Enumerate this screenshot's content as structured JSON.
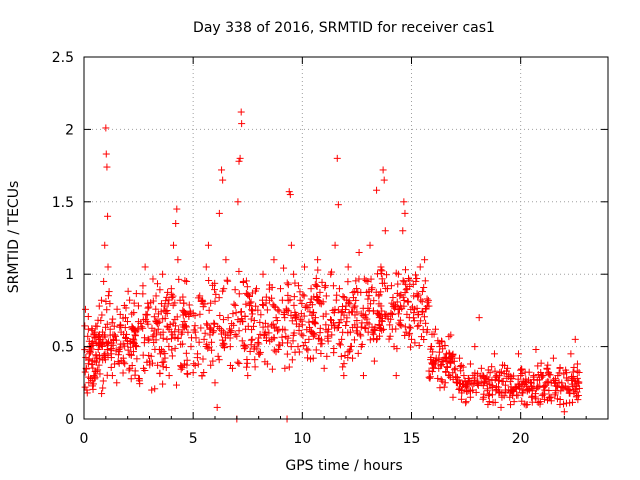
{
  "chart_data": {
    "type": "scatter",
    "title": "Day 338 of 2016, SRMTID for receiver cas1",
    "xlabel": "GPS time / hours",
    "ylabel": "SRMTID / TECUs",
    "xlim": [
      0,
      24
    ],
    "ylim": [
      0,
      2.5
    ],
    "xticks": [
      0,
      5,
      10,
      15,
      20
    ],
    "xtick_labels": [
      "0",
      "5",
      "10",
      "15",
      "20"
    ],
    "yticks": [
      0,
      0.5,
      1,
      1.5,
      2,
      2.5
    ],
    "ytick_labels": [
      "0",
      "0.5",
      "1",
      "1.5",
      "2",
      "2.5"
    ],
    "grid": true,
    "marker": "plus",
    "color": "#ff0000",
    "series": [
      {
        "name": "SRMTID",
        "points": [
          [
            0.05,
            0.22
          ],
          [
            0.1,
            0.35
          ],
          [
            0.15,
            0.18
          ],
          [
            0.2,
            0.62
          ],
          [
            0.25,
            0.45
          ],
          [
            0.3,
            0.28
          ],
          [
            0.35,
            0.52
          ],
          [
            0.4,
            0.4
          ],
          [
            0.45,
            0.3
          ],
          [
            0.5,
            0.56
          ],
          [
            0.55,
            0.33
          ],
          [
            0.6,
            0.64
          ],
          [
            0.65,
            0.48
          ],
          [
            0.7,
            0.78
          ],
          [
            0.75,
            0.55
          ],
          [
            0.8,
            0.82
          ],
          [
            0.85,
            0.6
          ],
          [
            0.9,
            0.95
          ],
          [
            0.95,
            1.2
          ],
          [
            1.0,
            2.01
          ],
          [
            1.02,
            1.83
          ],
          [
            1.05,
            1.74
          ],
          [
            1.08,
            1.4
          ],
          [
            1.1,
            1.05
          ],
          [
            1.15,
            0.88
          ],
          [
            1.2,
            0.62
          ],
          [
            1.25,
            0.45
          ],
          [
            1.3,
            0.3
          ],
          [
            1.35,
            0.55
          ],
          [
            1.4,
            0.38
          ],
          [
            1.5,
            0.25
          ],
          [
            1.6,
            0.48
          ],
          [
            1.7,
            0.6
          ],
          [
            1.8,
            0.42
          ],
          [
            1.9,
            0.7
          ],
          [
            2.0,
            0.52
          ],
          [
            2.1,
            0.35
          ],
          [
            2.2,
            0.62
          ],
          [
            2.3,
            0.8
          ],
          [
            2.4,
            0.5
          ],
          [
            2.5,
            0.28
          ],
          [
            2.6,
            0.66
          ],
          [
            2.7,
            0.92
          ],
          [
            2.8,
            1.05
          ],
          [
            2.9,
            0.72
          ],
          [
            3.0,
            0.4
          ],
          [
            3.1,
            0.2
          ],
          [
            3.2,
            0.58
          ],
          [
            3.3,
            0.85
          ],
          [
            3.4,
            0.62
          ],
          [
            3.5,
            0.45
          ],
          [
            3.6,
            1.0
          ],
          [
            3.7,
            0.78
          ],
          [
            3.8,
            0.55
          ],
          [
            3.9,
            0.3
          ],
          [
            4.0,
            0.9
          ],
          [
            4.1,
            1.2
          ],
          [
            4.2,
            1.35
          ],
          [
            4.25,
            1.45
          ],
          [
            4.3,
            1.1
          ],
          [
            4.4,
            0.82
          ],
          [
            4.5,
            0.6
          ],
          [
            4.6,
            0.38
          ],
          [
            4.7,
            0.95
          ],
          [
            4.8,
            0.72
          ],
          [
            4.9,
            0.5
          ],
          [
            5.0,
            0.32
          ],
          [
            5.1,
            0.6
          ],
          [
            5.2,
            0.45
          ],
          [
            5.3,
            0.85
          ],
          [
            5.4,
            0.3
          ],
          [
            5.5,
            0.55
          ],
          [
            5.6,
            1.05
          ],
          [
            5.7,
            1.2
          ],
          [
            5.8,
            0.8
          ],
          [
            5.9,
            0.4
          ],
          [
            6.0,
            0.25
          ],
          [
            6.1,
            0.08
          ],
          [
            6.2,
            1.42
          ],
          [
            6.3,
            1.72
          ],
          [
            6.35,
            1.65
          ],
          [
            6.4,
            0.9
          ],
          [
            6.5,
            1.1
          ],
          [
            6.6,
            0.7
          ],
          [
            6.7,
            0.5
          ],
          [
            6.8,
            0.35
          ],
          [
            7.0,
            0.0
          ],
          [
            7.05,
            1.5
          ],
          [
            7.1,
            1.78
          ],
          [
            7.15,
            1.8
          ],
          [
            7.2,
            2.12
          ],
          [
            7.22,
            2.04
          ],
          [
            7.3,
            0.95
          ],
          [
            7.4,
            0.62
          ],
          [
            7.5,
            0.3
          ],
          [
            7.6,
            0.8
          ],
          [
            7.7,
            0.55
          ],
          [
            7.8,
            0.68
          ],
          [
            7.9,
            0.9
          ],
          [
            8.0,
            0.45
          ],
          [
            8.1,
            0.72
          ],
          [
            8.2,
            1.0
          ],
          [
            8.3,
            0.6
          ],
          [
            8.4,
            0.38
          ],
          [
            8.5,
            0.82
          ],
          [
            8.6,
            0.55
          ],
          [
            8.7,
            1.1
          ],
          [
            8.8,
            0.7
          ],
          [
            8.9,
            0.48
          ],
          [
            9.0,
            0.9
          ],
          [
            9.1,
            0.62
          ],
          [
            9.2,
            0.35
          ],
          [
            9.3,
            0.0
          ],
          [
            9.4,
            1.57
          ],
          [
            9.45,
            1.55
          ],
          [
            9.5,
            1.2
          ],
          [
            9.6,
            1.0
          ],
          [
            9.7,
            0.72
          ],
          [
            9.8,
            0.5
          ],
          [
            9.9,
            0.82
          ],
          [
            10.0,
            0.65
          ],
          [
            10.1,
            1.05
          ],
          [
            10.2,
            0.78
          ],
          [
            10.3,
            0.55
          ],
          [
            10.4,
            0.9
          ],
          [
            10.5,
            0.42
          ],
          [
            10.6,
            0.7
          ],
          [
            10.7,
            1.1
          ],
          [
            10.8,
            0.8
          ],
          [
            10.9,
            0.52
          ],
          [
            11.0,
            0.35
          ],
          [
            11.1,
            0.85
          ],
          [
            11.2,
            0.62
          ],
          [
            11.3,
            1.0
          ],
          [
            11.4,
            0.75
          ],
          [
            11.5,
            1.2
          ],
          [
            11.6,
            1.8
          ],
          [
            11.65,
            1.48
          ],
          [
            11.7,
            0.9
          ],
          [
            11.8,
            0.55
          ],
          [
            11.9,
            0.3
          ],
          [
            12.0,
            0.78
          ],
          [
            12.1,
            1.05
          ],
          [
            12.2,
            0.6
          ],
          [
            12.3,
            0.42
          ],
          [
            12.4,
            0.88
          ],
          [
            12.5,
            0.68
          ],
          [
            12.6,
            1.15
          ],
          [
            12.7,
            0.5
          ],
          [
            12.8,
            0.3
          ],
          [
            12.9,
            0.72
          ],
          [
            13.0,
            0.95
          ],
          [
            13.1,
            1.2
          ],
          [
            13.2,
            0.6
          ],
          [
            13.3,
            0.4
          ],
          [
            13.4,
            1.58
          ],
          [
            13.5,
            0.85
          ],
          [
            13.6,
            1.05
          ],
          [
            13.7,
            1.72
          ],
          [
            13.75,
            1.65
          ],
          [
            13.8,
            1.3
          ],
          [
            13.9,
            0.9
          ],
          [
            14.0,
            0.65
          ],
          [
            14.1,
            0.8
          ],
          [
            14.2,
            0.5
          ],
          [
            14.3,
            0.3
          ],
          [
            14.4,
            1.0
          ],
          [
            14.5,
            0.78
          ],
          [
            14.6,
            1.3
          ],
          [
            14.65,
            1.5
          ],
          [
            14.7,
            1.42
          ],
          [
            14.8,
            0.9
          ],
          [
            14.9,
            0.7
          ],
          [
            15.0,
            0.55
          ],
          [
            15.1,
            0.85
          ],
          [
            15.2,
            0.95
          ],
          [
            15.3,
            0.72
          ],
          [
            15.4,
            1.05
          ],
          [
            15.5,
            0.88
          ],
          [
            15.6,
            1.1
          ],
          [
            15.7,
            0.6
          ],
          [
            15.8,
            0.78
          ],
          [
            15.9,
            0.5
          ],
          [
            16.0,
            0.35
          ],
          [
            16.1,
            0.62
          ],
          [
            16.2,
            0.28
          ],
          [
            16.3,
            0.5
          ],
          [
            16.4,
            0.4
          ],
          [
            16.5,
            0.22
          ],
          [
            16.6,
            0.45
          ],
          [
            16.7,
            0.3
          ],
          [
            16.8,
            0.58
          ],
          [
            16.9,
            0.15
          ],
          [
            17.0,
            0.35
          ],
          [
            17.1,
            0.25
          ],
          [
            17.2,
            0.42
          ],
          [
            17.3,
            0.18
          ],
          [
            17.4,
            0.3
          ],
          [
            17.5,
            0.12
          ],
          [
            17.6,
            0.28
          ],
          [
            17.7,
            0.38
          ],
          [
            17.8,
            0.2
          ],
          [
            17.9,
            0.5
          ],
          [
            18.0,
            0.25
          ],
          [
            18.1,
            0.7
          ],
          [
            18.2,
            0.35
          ],
          [
            18.3,
            0.15
          ],
          [
            18.4,
            0.28
          ],
          [
            18.5,
            0.1
          ],
          [
            18.6,
            0.32
          ],
          [
            18.7,
            0.22
          ],
          [
            18.8,
            0.45
          ],
          [
            18.9,
            0.3
          ],
          [
            19.0,
            0.18
          ],
          [
            19.1,
            0.08
          ],
          [
            19.2,
            0.26
          ],
          [
            19.3,
            0.2
          ],
          [
            19.4,
            0.35
          ],
          [
            19.5,
            0.15
          ],
          [
            19.6,
            0.28
          ],
          [
            19.7,
            0.12
          ],
          [
            19.8,
            0.22
          ],
          [
            19.9,
            0.45
          ],
          [
            20.0,
            0.3
          ],
          [
            20.1,
            0.18
          ],
          [
            20.2,
            0.25
          ],
          [
            20.3,
            0.1
          ],
          [
            20.4,
            0.2
          ],
          [
            20.5,
            0.15
          ],
          [
            20.6,
            0.3
          ],
          [
            20.7,
            0.48
          ],
          [
            20.8,
            0.22
          ],
          [
            20.9,
            0.12
          ],
          [
            21.0,
            0.3
          ],
          [
            21.1,
            0.2
          ],
          [
            21.2,
            0.35
          ],
          [
            21.3,
            0.15
          ],
          [
            21.4,
            0.25
          ],
          [
            21.5,
            0.42
          ],
          [
            21.6,
            0.18
          ],
          [
            21.7,
            0.3
          ],
          [
            21.8,
            0.1
          ],
          [
            21.9,
            0.22
          ],
          [
            22.0,
            0.05
          ],
          [
            22.1,
            0.32
          ],
          [
            22.2,
            0.2
          ],
          [
            22.3,
            0.45
          ],
          [
            22.4,
            0.28
          ],
          [
            22.5,
            0.55
          ],
          [
            22.6,
            0.38
          ]
        ]
      }
    ],
    "dense_bands": [
      {
        "x_from": 0.0,
        "x_to": 1.0,
        "y_min": 0.15,
        "y_max": 0.8,
        "count": 80
      },
      {
        "x_from": 1.0,
        "x_to": 3.0,
        "y_min": 0.2,
        "y_max": 0.9,
        "count": 120
      },
      {
        "x_from": 3.0,
        "x_to": 6.0,
        "y_min": 0.2,
        "y_max": 1.0,
        "count": 160
      },
      {
        "x_from": 6.0,
        "x_to": 9.5,
        "y_min": 0.3,
        "y_max": 1.05,
        "count": 160
      },
      {
        "x_from": 9.5,
        "x_to": 13.0,
        "y_min": 0.35,
        "y_max": 1.05,
        "count": 180
      },
      {
        "x_from": 13.0,
        "x_to": 15.8,
        "y_min": 0.45,
        "y_max": 1.1,
        "count": 150
      },
      {
        "x_from": 15.8,
        "x_to": 17.0,
        "y_min": 0.2,
        "y_max": 0.6,
        "count": 70
      },
      {
        "x_from": 17.0,
        "x_to": 22.7,
        "y_min": 0.08,
        "y_max": 0.4,
        "count": 260
      }
    ]
  }
}
